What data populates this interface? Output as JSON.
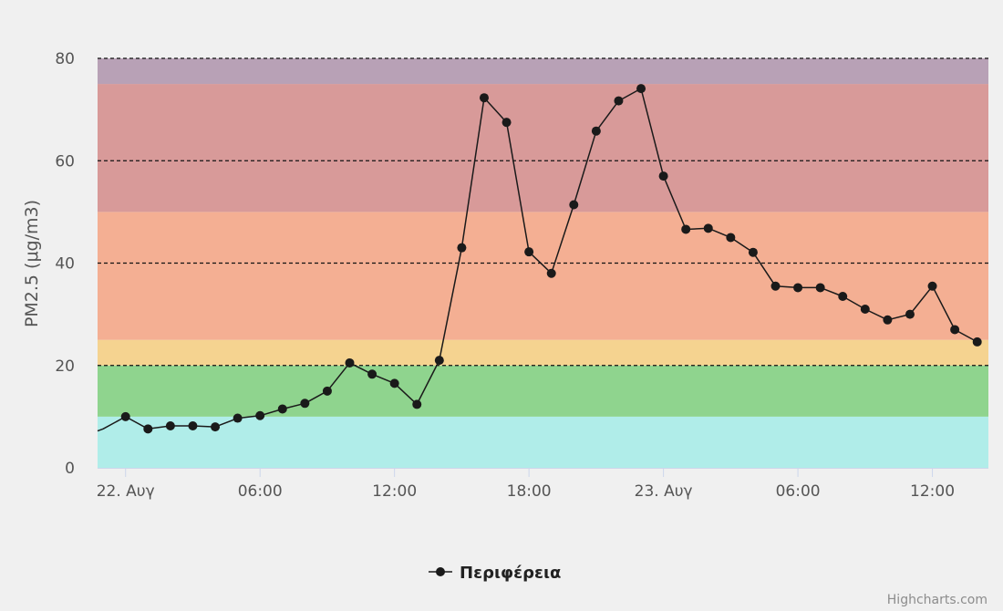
{
  "chart_data": {
    "type": "line",
    "title": "",
    "ylabel": "PM2.5 (μg/m3)",
    "xlabel": "",
    "ylim": [
      0,
      80
    ],
    "y_ticks": [
      0,
      20,
      40,
      60,
      80
    ],
    "x_range_hours": [
      -1.25,
      38.5
    ],
    "x_ticks": [
      {
        "hour": 0,
        "label": "22. Αυγ"
      },
      {
        "hour": 6,
        "label": "06:00"
      },
      {
        "hour": 12,
        "label": "12:00"
      },
      {
        "hour": 18,
        "label": "18:00"
      },
      {
        "hour": 24,
        "label": "23. Αυγ"
      },
      {
        "hour": 30,
        "label": "06:00"
      },
      {
        "hour": 36,
        "label": "12:00"
      }
    ],
    "bands": [
      {
        "from": 0,
        "to": 10,
        "color": "#b0ede9"
      },
      {
        "from": 10,
        "to": 20,
        "color": "#8fd48e"
      },
      {
        "from": 20,
        "to": 25,
        "color": "#f5d390"
      },
      {
        "from": 25,
        "to": 50,
        "color": "#f4af93"
      },
      {
        "from": 50,
        "to": 75,
        "color": "#d89a99"
      },
      {
        "from": 75,
        "to": 80,
        "color": "#b8a1b6"
      }
    ],
    "grid_dashed_at": [
      20,
      40,
      60,
      80
    ],
    "series": [
      {
        "name": "Περιφέρεια",
        "color": "#1a1a1a",
        "points": [
          [
            -1.25,
            7.2
          ],
          [
            -1,
            7.6
          ],
          [
            0,
            10.0
          ],
          [
            1,
            7.6
          ],
          [
            2,
            8.2
          ],
          [
            3,
            8.2
          ],
          [
            4,
            8.0
          ],
          [
            5,
            9.7
          ],
          [
            6,
            10.2
          ],
          [
            7,
            11.5
          ],
          [
            8,
            12.6
          ],
          [
            9,
            15.0
          ],
          [
            10,
            20.5
          ],
          [
            11,
            18.3
          ],
          [
            12,
            16.5
          ],
          [
            13,
            12.4
          ],
          [
            14,
            21.0
          ],
          [
            15,
            43.0
          ],
          [
            16,
            72.3
          ],
          [
            17,
            67.5
          ],
          [
            18,
            42.2
          ],
          [
            19,
            38.0
          ],
          [
            20,
            51.4
          ],
          [
            21,
            65.8
          ],
          [
            22,
            71.7
          ],
          [
            23,
            74.1
          ],
          [
            24,
            57.0
          ],
          [
            25,
            46.6
          ],
          [
            26,
            46.8
          ],
          [
            27,
            45.0
          ],
          [
            28,
            42.1
          ],
          [
            29,
            35.5
          ],
          [
            30,
            35.2
          ],
          [
            31,
            35.2
          ],
          [
            32,
            33.5
          ],
          [
            33,
            31.0
          ],
          [
            34,
            28.9
          ],
          [
            35,
            30.0
          ],
          [
            36,
            35.5
          ],
          [
            37,
            27.0
          ],
          [
            38,
            24.6
          ]
        ]
      }
    ],
    "legend_position": "bottom-center"
  },
  "credits": "Highcharts.com"
}
